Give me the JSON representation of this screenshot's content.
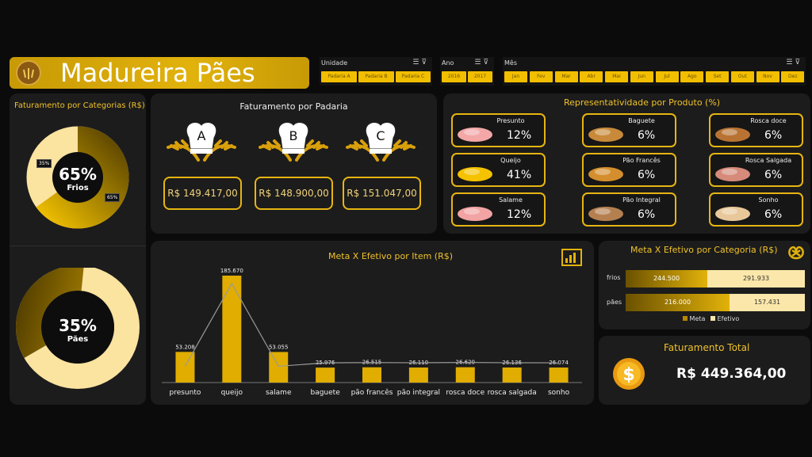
{
  "header": {
    "title": "Madureira Pães"
  },
  "slicers": {
    "unidade": {
      "label": "Unidade",
      "items": [
        "Padaria A",
        "Padaria B",
        "Padaria C"
      ]
    },
    "ano": {
      "label": "Ano",
      "items": [
        "2016",
        "2017"
      ]
    },
    "mes": {
      "label": "Mês",
      "items": [
        "Jan",
        "Fev",
        "Mar",
        "Abr",
        "Mai",
        "Jun",
        "Jul",
        "Ago",
        "Set",
        "Out",
        "Nov",
        "Dez"
      ]
    }
  },
  "categorias": {
    "title": "Faturamento por Categorias (R$)",
    "frios": {
      "pct": "65%",
      "label": "Frios",
      "tag_small": "35%",
      "tag_large": "65%"
    },
    "paes": {
      "pct": "35%",
      "label": "Pães"
    }
  },
  "padarias": {
    "title": "Faturamento por Padaria",
    "items": [
      {
        "letter": "A",
        "value": "R$ 149.417,00"
      },
      {
        "letter": "B",
        "value": "R$ 148.900,00"
      },
      {
        "letter": "C",
        "value": "R$ 151.047,00"
      }
    ]
  },
  "produtos": {
    "title": "Representatividade  por Produto (%)",
    "items": [
      {
        "name": "Presunto",
        "value": "12%"
      },
      {
        "name": "Baguete",
        "value": "6%"
      },
      {
        "name": "Rosca doce",
        "value": "6%"
      },
      {
        "name": "Queijo",
        "value": "41%"
      },
      {
        "name": "Pão Francês",
        "value": "6%"
      },
      {
        "name": "Rosca Salgada",
        "value": "6%"
      },
      {
        "name": "Salame",
        "value": "12%"
      },
      {
        "name": "Pão Integral",
        "value": "6%"
      },
      {
        "name": "Sonho",
        "value": "6%"
      }
    ]
  },
  "meta_item": {
    "title": "Meta X Efetivo por Item (R$)"
  },
  "chart_data": [
    {
      "type": "bar",
      "title": "Meta X Efetivo por Item (R$)",
      "categories": [
        "presunto",
        "queijo",
        "salame",
        "baguete",
        "pão francês",
        "pão integral",
        "rosca doce",
        "rosca salgada",
        "sonho"
      ],
      "labels": [
        "53.208",
        "185.670",
        "53.055",
        "25.976",
        "26.515",
        "26.110",
        "26.620",
        "26.136",
        "26.074"
      ],
      "values": [
        53208,
        185670,
        53055,
        25976,
        26515,
        26110,
        26620,
        26136,
        26074
      ],
      "ylim": [
        0,
        185670
      ]
    },
    {
      "type": "bar",
      "title": "Meta X Efetivo por Categoria (R$)",
      "categories": [
        "frios",
        "pães"
      ],
      "series": [
        {
          "name": "Meta",
          "values": [
            244500,
            216000
          ],
          "labels": [
            "244.500",
            "216.000"
          ]
        },
        {
          "name": "Efetivo",
          "values": [
            291933,
            157431
          ],
          "labels": [
            "291.933",
            "157.431"
          ]
        }
      ]
    }
  ],
  "meta_cat": {
    "title": "Meta X Efetivo por Categoria (R$)",
    "legend_meta": "Meta",
    "legend_efetivo": "Efetivo"
  },
  "total": {
    "title": "Faturamento Total",
    "value": "R$ 449.364,00"
  },
  "colors": {
    "accent": "#e2b20c",
    "light": "#fbe7a9",
    "dark": "#6b5100",
    "bg": "#0b0b0b",
    "panel": "#1c1c1c"
  }
}
